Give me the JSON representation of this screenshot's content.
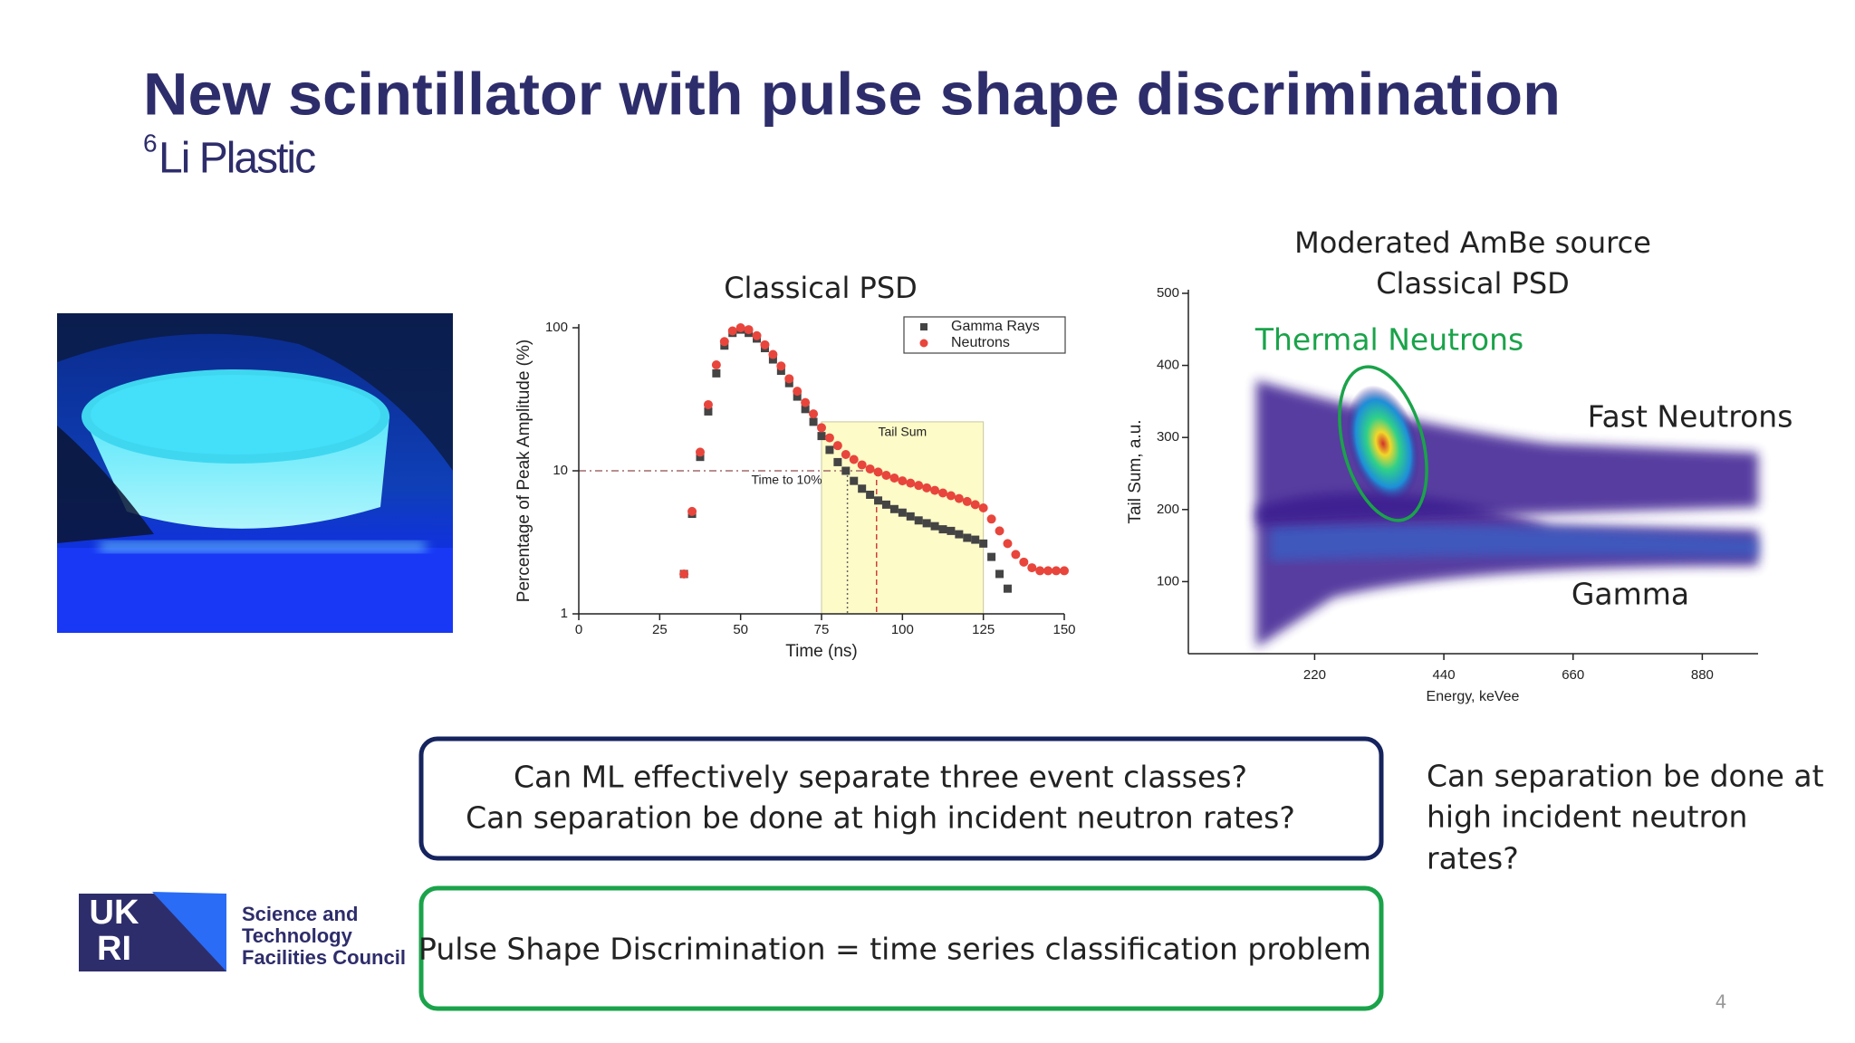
{
  "header": {
    "title": "New scintillator with pulse shape discrimination",
    "subtitle_superscript": "6",
    "subtitle": "Li Plastic"
  },
  "chart_data": [
    {
      "type": "scatter",
      "title": "Classical PSD",
      "x_label": "Time (ns)",
      "y_label": "Percentage of Peak Amplitude (%)",
      "x": [
        32.5,
        35,
        37.5,
        40,
        42.5,
        45,
        47.5,
        50,
        52.5,
        55,
        57.5,
        60,
        62.5,
        65,
        67.5,
        70,
        72.5,
        75,
        77.5,
        80,
        82.5,
        85,
        87.5,
        90,
        92.5,
        95,
        97.5,
        100,
        102.5,
        105,
        107.5,
        110,
        112.5,
        115,
        117.5,
        120,
        122.5,
        125,
        127.5,
        130,
        132.5,
        135,
        137.5,
        140,
        142.5,
        145,
        147.5,
        150
      ],
      "series": [
        {
          "name": "Gamma Rays",
          "color": "#444444",
          "marker": "square",
          "values": [
            1.9,
            5,
            12.5,
            26,
            48,
            75,
            92,
            97,
            92,
            84,
            72,
            60,
            50,
            41,
            33,
            27,
            22,
            17.5,
            14,
            11.5,
            10,
            8.5,
            7.5,
            6.8,
            6.2,
            5.8,
            5.4,
            5.1,
            4.8,
            4.5,
            4.3,
            4.1,
            3.9,
            3.8,
            3.6,
            3.4,
            3.3,
            3.1,
            2.5,
            1.9,
            1.5,
            null,
            null,
            null,
            null,
            null,
            null,
            null
          ]
        },
        {
          "name": "Neutrons",
          "color": "#e8453c",
          "marker": "circle",
          "values": [
            1.9,
            5.2,
            13.5,
            29,
            55,
            80,
            95,
            100,
            97,
            88,
            76,
            65,
            54,
            44,
            36,
            30,
            25,
            20,
            17,
            15,
            13,
            12,
            11,
            10.3,
            9.8,
            9.3,
            8.9,
            8.5,
            8.2,
            7.9,
            7.6,
            7.3,
            7,
            6.7,
            6.4,
            6.1,
            5.8,
            5.5,
            4.6,
            3.8,
            3.1,
            2.6,
            2.3,
            2.1,
            2,
            2,
            2,
            2
          ]
        }
      ],
      "xlim": [
        0,
        150
      ],
      "xticks": [
        0,
        25,
        50,
        75,
        100,
        125,
        150
      ],
      "ylim": [
        1,
        100
      ],
      "yticks": [
        1,
        10,
        100
      ],
      "log_y": true,
      "legend": "upper right",
      "tail_sum": {
        "label": "Tail Sum",
        "x": [
          75,
          125
        ],
        "top": 22
      },
      "time_to_10": {
        "label": "Time to 10%",
        "y": 10,
        "gamma_x": 83,
        "neutron_x": 92
      }
    },
    {
      "type": "density",
      "title": [
        "Moderated AmBe source",
        "Classical PSD"
      ],
      "x_label": "Energy, keVee",
      "y_label": "Tail Sum, a.u.",
      "xlim": [
        5,
        975
      ],
      "xticks": [
        220,
        440,
        660,
        880
      ],
      "ylim": [
        0,
        505
      ],
      "yticks": [
        100,
        200,
        300,
        400,
        500
      ],
      "annotations": [
        {
          "text": "Thermal Neutrons",
          "color": "#1aa34a"
        },
        {
          "text": "Fast Neutrons",
          "color": "#222222"
        },
        {
          "text": "Gamma",
          "color": "#222222"
        }
      ]
    }
  ],
  "questions_box": {
    "lines": [
      "Can ML effectively separate three event classes?",
      "Can separation be done at high incident neutron rates?"
    ]
  },
  "psd_box": {
    "text": "Pulse Shape Discrimination = time series classification problem"
  },
  "side_note": {
    "lines": [
      "Can separation be done at",
      "high incident neutron",
      "rates?"
    ]
  },
  "logo": {
    "mark_top": "UK",
    "mark_bottom": "RI",
    "lines": [
      "Science and",
      "Technology",
      "Facilities Council"
    ]
  },
  "page_number": "4"
}
